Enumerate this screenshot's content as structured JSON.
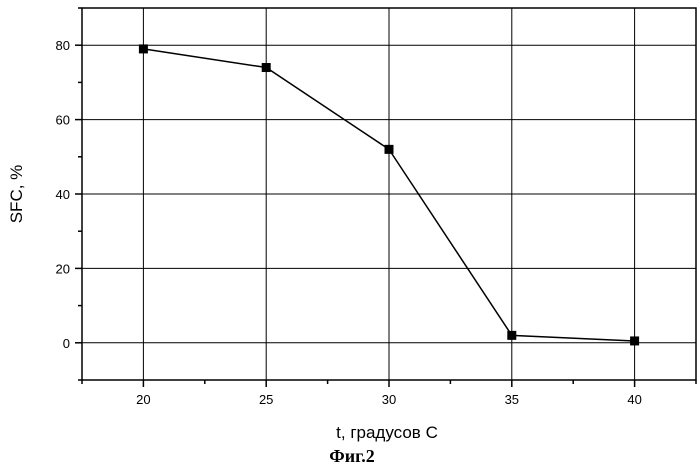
{
  "chart_data": {
    "type": "line",
    "xlabel": "t, градусов C",
    "ylabel": "SFC, %",
    "caption": "Фиг.2",
    "x": [
      20,
      25,
      30,
      35,
      40
    ],
    "series": [
      {
        "values": [
          79,
          74,
          52,
          2,
          0.5
        ]
      }
    ],
    "xlim": [
      17.5,
      42.5
    ],
    "ylim": [
      -10,
      90
    ],
    "xticks": [
      20,
      25,
      30,
      35,
      40
    ],
    "yticks": [
      0,
      20,
      40,
      60,
      80
    ],
    "grid": true,
    "marker": "square",
    "line_color": "#000000"
  }
}
